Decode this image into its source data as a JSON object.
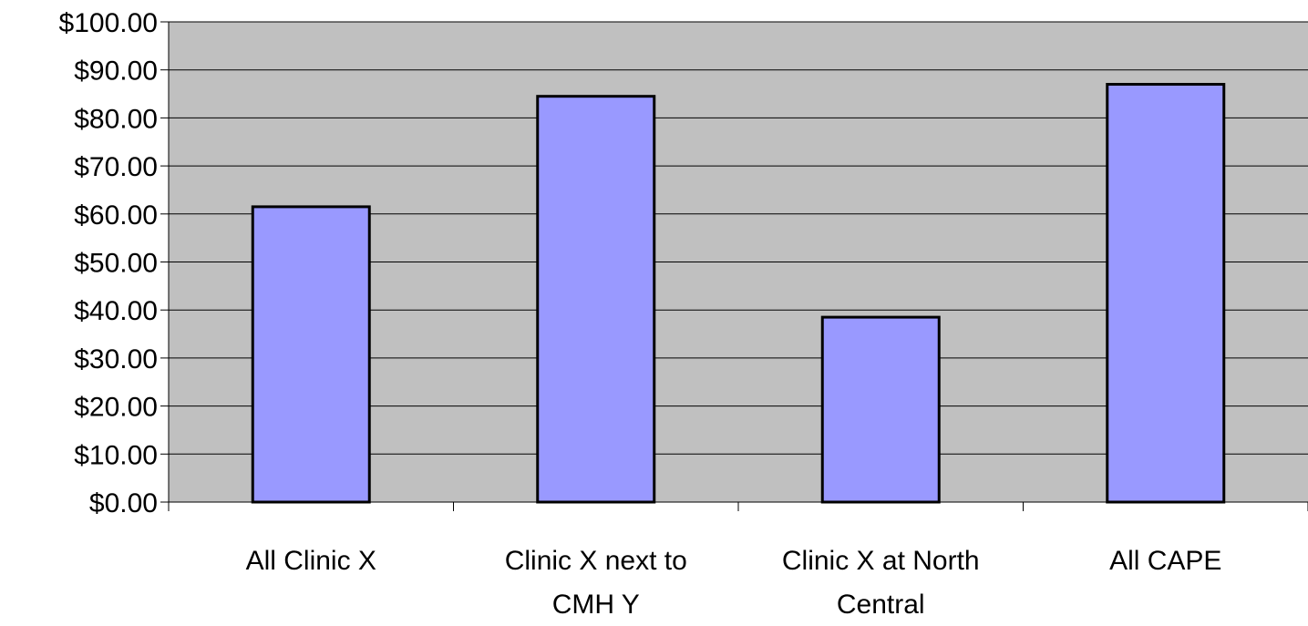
{
  "chart_data": {
    "type": "bar",
    "title": "",
    "xlabel": "",
    "ylabel": "",
    "categories": [
      [
        "All Clinic X"
      ],
      [
        "Clinic X next to",
        "CMH Y"
      ],
      [
        "Clinic X at North",
        "Central"
      ],
      [
        "All CAPE"
      ]
    ],
    "values": [
      61.5,
      84.5,
      38.5,
      87.0
    ],
    "ylim": [
      0,
      100
    ],
    "ytick_step": 10,
    "ytick_labels": [
      "$0.00",
      "$10.00",
      "$20.00",
      "$30.00",
      "$40.00",
      "$50.00",
      "$60.00",
      "$70.00",
      "$80.00",
      "$90.00",
      "$100.00"
    ],
    "grid": true,
    "legend": "none",
    "colors": {
      "plot_background": "#c0c0c0",
      "bar_fill": "#9999ff",
      "bar_stroke": "#000000",
      "gridline": "#000000"
    }
  }
}
